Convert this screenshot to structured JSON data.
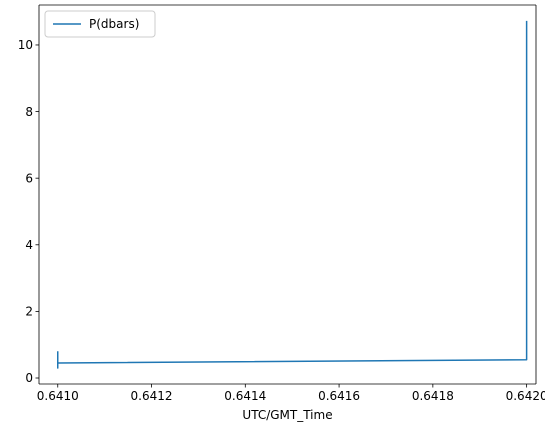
{
  "chart_data": {
    "type": "line",
    "title": "",
    "xlabel": "UTC/GMT_Time",
    "ylabel": "",
    "xlim": [
      0.64096,
      0.64202
    ],
    "ylim": [
      -0.18,
      11.2
    ],
    "grid": false,
    "legend_position": "top-left",
    "x_ticks": [
      0.641,
      0.6412,
      0.6414,
      0.6416,
      0.6418,
      0.642
    ],
    "x_tick_labels": [
      "0.6410",
      "0.6412",
      "0.6414",
      "0.6416",
      "0.6418",
      "0.6420"
    ],
    "y_ticks": [
      0,
      2,
      4,
      6,
      8,
      10
    ],
    "y_tick_labels": [
      "0",
      "2",
      "4",
      "6",
      "8",
      "10"
    ],
    "series": [
      {
        "name": "P(dbars)",
        "color": "#1f77b4",
        "x": [
          0.641,
          0.641,
          0.641,
          0.641,
          0.641,
          0.642,
          0.642,
          0.642,
          0.642,
          0.642,
          0.642,
          0.642
        ],
        "y": [
          0.78,
          0.3,
          0.65,
          0.45,
          0.45,
          0.55,
          0.55,
          2.6,
          4.3,
          5.7,
          8.5,
          10.7
        ]
      }
    ]
  }
}
